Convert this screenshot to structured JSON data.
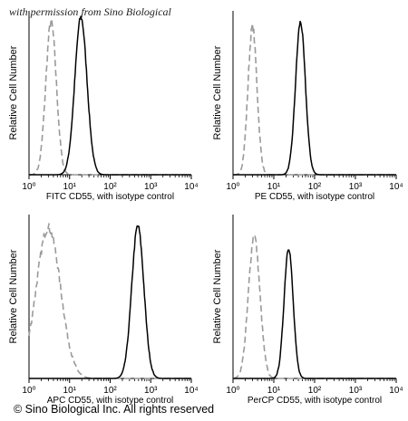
{
  "watermark": "with permission from Sino Biological",
  "footer": "© Sino Biological Inc. All rights reserved",
  "colors": {
    "sample": "#000000",
    "isotype": "#9a9a9a",
    "axis": "#000000"
  },
  "chart_data": [
    {
      "type": "line",
      "title": "",
      "xlabel": "FITC CD55,  with isotype control",
      "ylabel": "Relative Cell Number",
      "x_scale": "log",
      "xlim": [
        1,
        10000
      ],
      "ylim": [
        0,
        1
      ],
      "x_ticks": [
        "10⁰",
        "10¹",
        "10²",
        "10³",
        "10⁴"
      ],
      "grid": false,
      "series": [
        {
          "style": "dashed-gray",
          "shape": "lognormal",
          "peak_x": 3.5,
          "log_sigma": 0.13,
          "peak": 0.93
        },
        {
          "style": "solid-black",
          "shape": "lognormal",
          "peak_x": 19,
          "log_sigma": 0.15,
          "peak": 0.96
        }
      ]
    },
    {
      "type": "line",
      "title": "",
      "xlabel": "PE CD55,  with isotype control",
      "ylabel": "Relative Cell Number",
      "x_scale": "log",
      "xlim": [
        1,
        10000
      ],
      "ylim": [
        0,
        1
      ],
      "x_ticks": [
        "10⁰",
        "10¹",
        "10²",
        "10³",
        "10⁴"
      ],
      "grid": false,
      "series": [
        {
          "style": "dashed-gray",
          "shape": "lognormal",
          "peak_x": 3.0,
          "log_sigma": 0.11,
          "peak": 0.9
        },
        {
          "style": "solid-black",
          "shape": "lognormal",
          "peak_x": 45,
          "log_sigma": 0.12,
          "peak": 0.93
        }
      ]
    },
    {
      "type": "line",
      "title": "",
      "xlabel": "APC CD55,  with isotype control",
      "ylabel": "Relative Cell Number",
      "x_scale": "log",
      "xlim": [
        1,
        10000
      ],
      "ylim": [
        0,
        1
      ],
      "x_ticks": [
        "10⁰",
        "10¹",
        "10²",
        "10³",
        "10⁴"
      ],
      "grid": false,
      "series": [
        {
          "style": "dashed-gray",
          "shape": "lognormal",
          "peak_x": 3.0,
          "log_sigma": 0.3,
          "peak": 0.92
        },
        {
          "style": "solid-black",
          "shape": "lognormal",
          "peak_x": 480,
          "log_sigma": 0.15,
          "peak": 0.93
        }
      ]
    },
    {
      "type": "line",
      "title": "",
      "xlabel": "PerCP CD55, with isotype control",
      "ylabel": "Relative Cell Number",
      "x_scale": "log",
      "xlim": [
        1,
        10000
      ],
      "ylim": [
        0,
        1
      ],
      "x_ticks": [
        "10⁰",
        "10¹",
        "10²",
        "10³",
        "10⁴"
      ],
      "grid": false,
      "series": [
        {
          "style": "dashed-gray",
          "shape": "lognormal",
          "peak_x": 3.3,
          "log_sigma": 0.14,
          "peak": 0.87
        },
        {
          "style": "solid-black",
          "shape": "lognormal",
          "peak_x": 23,
          "log_sigma": 0.11,
          "peak": 0.8
        }
      ]
    }
  ]
}
